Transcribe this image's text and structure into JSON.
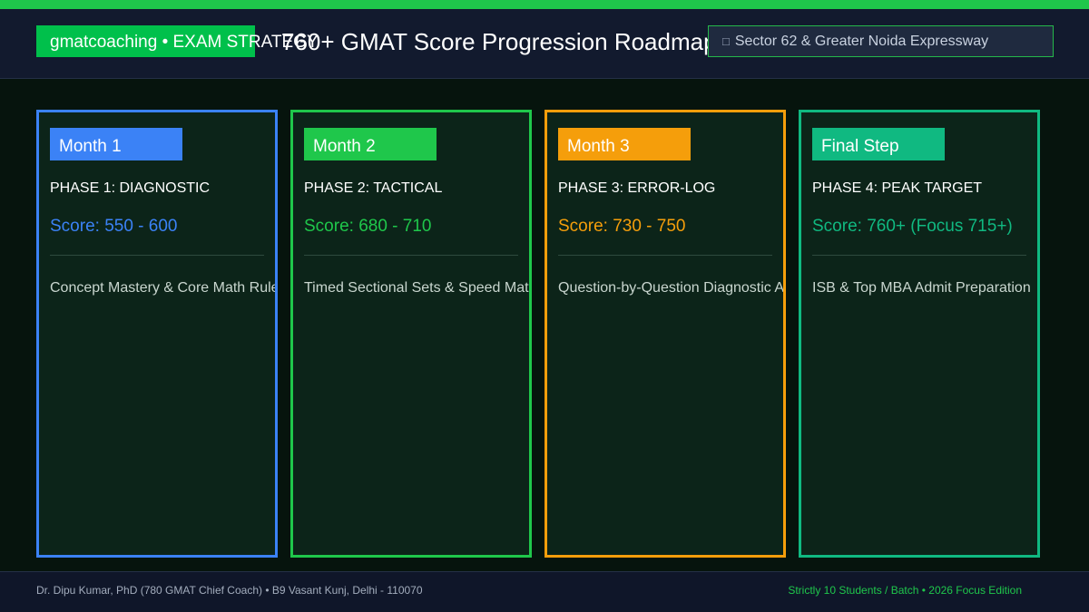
{
  "header": {
    "brand": "gmatcoaching • EXAM STRATEGY",
    "title": "760+ GMAT Score Progression Roadmap",
    "location": "Sector 62 & Greater Noida Expressway",
    "location_icon": "pin-icon"
  },
  "cards": [
    {
      "tag": "Month 1",
      "phase": "PHASE 1: DIAGNOSTIC",
      "score": "Score: 550 - 600",
      "desc": "Concept Mastery & Core Math Rules",
      "color": "#3b82f6"
    },
    {
      "tag": "Month 2",
      "phase": "PHASE 2: TACTICAL",
      "score": "Score: 680 - 710",
      "desc": "Timed Sectional Sets & Speed Math",
      "color": "#1fc74b"
    },
    {
      "tag": "Month 3",
      "phase": "PHASE 3: ERROR-LOG",
      "score": "Score: 730 - 750",
      "desc": "Question-by-Question Diagnostic Audit",
      "color": "#f59e0b"
    },
    {
      "tag": "Final Step",
      "phase": "PHASE 4: PEAK TARGET",
      "score": "Score: 760+ (Focus 715+)",
      "desc": "ISB & Top MBA Admit Preparation",
      "color": "#10b981"
    }
  ],
  "footer": {
    "left": "Dr. Dipu Kumar, PhD (780 GMAT Chief Coach) • B9 Vasant Kunj, Delhi - 110070",
    "right": "Strictly 10 Students / Batch • 2026 Focus Edition"
  },
  "colors": {
    "accent": "#1fc74b",
    "background": "#06140d",
    "header_bg": "#121a2e"
  }
}
